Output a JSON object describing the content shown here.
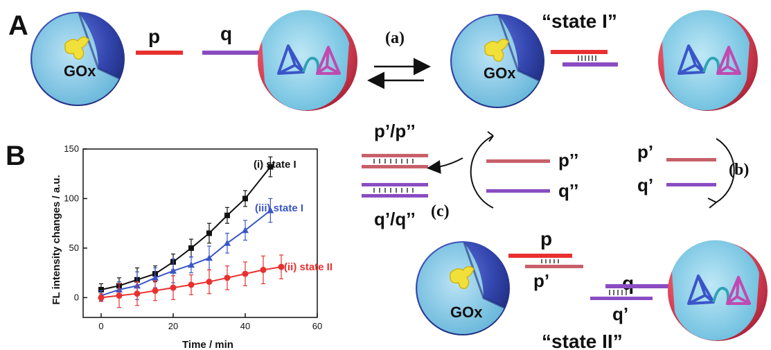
{
  "panels": {
    "a": "A",
    "b": "B"
  },
  "labels": {
    "p": "p",
    "q": "q",
    "gox": "GOx",
    "state_i": "“state I”",
    "state_ii": "“state II”",
    "step_a": "(a)",
    "step_b": "(b)",
    "step_c": "(c)",
    "p_prime": "p’",
    "q_prime": "q’",
    "p_dprime": "p’’",
    "q_dprime": "q’’",
    "pp_duplex": "p’/p’’",
    "qq_duplex": "q’/q’’"
  },
  "colors": {
    "blue_sphere": "#3a4fb0",
    "red_sphere": "#e0475a",
    "inner": "#8fd0ea",
    "red_strand": "#e8302f",
    "purple_strand": "#8a4cc2",
    "series_state_i": "#111111",
    "series_state_iii": "#3a55c9",
    "series_state_ii": "#e8302f"
  },
  "chart_data": {
    "type": "line",
    "xlabel": "Time / min",
    "ylabel": "FL intensity changes / a.u.",
    "xlim": [
      -5,
      60
    ],
    "ylim": [
      -20,
      150
    ],
    "xticks": [
      0,
      20,
      40,
      60
    ],
    "yticks": [
      0,
      50,
      100,
      150
    ],
    "series": [
      {
        "name": "(i) state I",
        "color": "#111111",
        "marker": "square",
        "x": [
          0,
          5,
          10,
          15,
          20,
          25,
          30,
          35,
          40,
          47
        ],
        "y": [
          8,
          12,
          18,
          24,
          36,
          50,
          65,
          83,
          100,
          132
        ],
        "err": [
          6,
          8,
          12,
          8,
          8,
          9,
          10,
          8,
          8,
          10
        ]
      },
      {
        "name": "(iii) state I",
        "color": "#3a55c9",
        "marker": "triangle",
        "x": [
          0,
          5,
          10,
          15,
          20,
          25,
          30,
          35,
          40,
          47
        ],
        "y": [
          2,
          8,
          12,
          20,
          27,
          33,
          40,
          55,
          68,
          88
        ],
        "err": [
          5,
          8,
          14,
          10,
          12,
          8,
          12,
          10,
          10,
          12
        ]
      },
      {
        "name": "(ii) state II",
        "color": "#e8302f",
        "marker": "circle",
        "x": [
          0,
          5,
          10,
          15,
          20,
          25,
          30,
          35,
          40,
          45,
          50
        ],
        "y": [
          0,
          2,
          4,
          7,
          10,
          13,
          16,
          20,
          24,
          28,
          31
        ],
        "err": [
          4,
          12,
          12,
          10,
          12,
          10,
          12,
          12,
          12,
          14,
          12
        ]
      }
    ]
  }
}
